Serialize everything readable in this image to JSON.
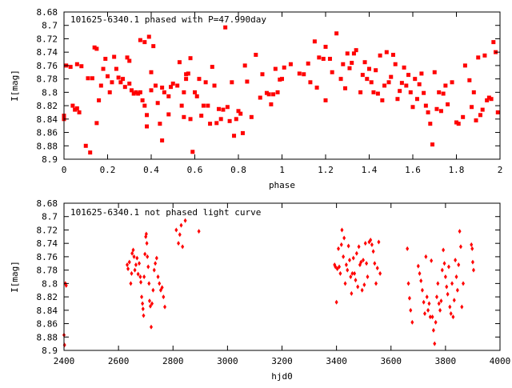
{
  "colors": {
    "points": "#ff0000",
    "axes": "#000000",
    "background": "#ffffff"
  },
  "chart_data": [
    {
      "type": "scatter",
      "title": "101625-6340.1 phased with P=47.990day",
      "xlabel": "phase",
      "ylabel": "I[mag]",
      "xlim": [
        0,
        2
      ],
      "ylim": [
        8.68,
        8.9
      ],
      "y_inverted": true,
      "grid": false,
      "marker": "filled square",
      "x_ticks": [
        "0",
        "0.2",
        "0.4",
        "0.6",
        "0.8",
        "1",
        "1.2",
        "1.4",
        "1.6",
        "1.8",
        "2"
      ],
      "x_tick_values": [
        0,
        0.2,
        0.4,
        0.6,
        0.8,
        1,
        1.2,
        1.4,
        1.6,
        1.8,
        2
      ],
      "y_ticks": [
        "8.68",
        "8.7",
        "8.72",
        "8.74",
        "8.76",
        "8.78",
        "8.8",
        "8.82",
        "8.84",
        "8.86",
        "8.88",
        "8.9"
      ],
      "y_tick_values": [
        8.68,
        8.7,
        8.72,
        8.74,
        8.76,
        8.78,
        8.8,
        8.82,
        8.84,
        8.86,
        8.88,
        8.9
      ],
      "points": [
        [
          0.0,
          8.835
        ],
        [
          0.0,
          8.84
        ],
        [
          0.01,
          8.76
        ],
        [
          0.03,
          8.762
        ],
        [
          0.04,
          8.82
        ],
        [
          0.05,
          8.826
        ],
        [
          0.06,
          8.758
        ],
        [
          0.06,
          8.824
        ],
        [
          0.07,
          8.83
        ],
        [
          0.08,
          8.761
        ],
        [
          0.1,
          8.88
        ],
        [
          0.11,
          8.779
        ],
        [
          0.12,
          8.89
        ],
        [
          0.13,
          8.779
        ],
        [
          0.14,
          8.733
        ],
        [
          0.15,
          8.735
        ],
        [
          0.15,
          8.846
        ],
        [
          0.16,
          8.812
        ],
        [
          0.17,
          8.79
        ],
        [
          0.18,
          8.765
        ],
        [
          0.19,
          8.75
        ],
        [
          0.2,
          8.776
        ],
        [
          0.21,
          8.8
        ],
        [
          0.22,
          8.785
        ],
        [
          0.23,
          8.747
        ],
        [
          0.24,
          8.765
        ],
        [
          0.25,
          8.778
        ],
        [
          0.26,
          8.785
        ],
        [
          0.27,
          8.78
        ],
        [
          0.28,
          8.792
        ],
        [
          0.29,
          8.748
        ],
        [
          0.3,
          8.753
        ],
        [
          0.3,
          8.787
        ],
        [
          0.31,
          8.797
        ],
        [
          0.32,
          8.802
        ],
        [
          0.33,
          8.8
        ],
        [
          0.34,
          8.802
        ],
        [
          0.35,
          8.722
        ],
        [
          0.35,
          8.8
        ],
        [
          0.36,
          8.812
        ],
        [
          0.37,
          8.725
        ],
        [
          0.37,
          8.82
        ],
        [
          0.38,
          8.834
        ],
        [
          0.38,
          8.851
        ],
        [
          0.39,
          8.717
        ],
        [
          0.4,
          8.77
        ],
        [
          0.4,
          8.797
        ],
        [
          0.41,
          8.731
        ],
        [
          0.42,
          8.79
        ],
        [
          0.43,
          8.816
        ],
        [
          0.44,
          8.847
        ],
        [
          0.45,
          8.872
        ],
        [
          0.45,
          8.793
        ],
        [
          0.46,
          8.8
        ],
        [
          0.48,
          8.833
        ],
        [
          0.48,
          8.806
        ],
        [
          0.49,
          8.792
        ],
        [
          0.5,
          8.787
        ],
        [
          0.52,
          8.79
        ],
        [
          0.53,
          8.755
        ],
        [
          0.54,
          8.82
        ],
        [
          0.55,
          8.837
        ],
        [
          0.55,
          8.8
        ],
        [
          0.56,
          8.78
        ],
        [
          0.56,
          8.773
        ],
        [
          0.57,
          8.772
        ],
        [
          0.58,
          8.749
        ],
        [
          0.58,
          8.84
        ],
        [
          0.59,
          8.889
        ],
        [
          0.6,
          8.8
        ],
        [
          0.61,
          8.806
        ],
        [
          0.62,
          8.78
        ],
        [
          0.63,
          8.835
        ],
        [
          0.64,
          8.82
        ],
        [
          0.65,
          8.785
        ],
        [
          0.66,
          8.82
        ],
        [
          0.67,
          8.847
        ],
        [
          0.68,
          8.762
        ],
        [
          0.69,
          8.79
        ],
        [
          0.7,
          8.846
        ],
        [
          0.71,
          8.825
        ],
        [
          0.72,
          8.84
        ],
        [
          0.73,
          8.826
        ],
        [
          0.74,
          8.703
        ],
        [
          0.75,
          8.822
        ],
        [
          0.76,
          8.843
        ],
        [
          0.77,
          8.785
        ],
        [
          0.78,
          8.865
        ],
        [
          0.79,
          8.84
        ],
        [
          0.8,
          8.828
        ],
        [
          0.81,
          8.832
        ],
        [
          0.82,
          8.861
        ],
        [
          0.83,
          8.76
        ],
        [
          0.84,
          8.784
        ],
        [
          0.86,
          8.837
        ],
        [
          0.88,
          8.744
        ],
        [
          0.9,
          8.808
        ],
        [
          0.91,
          8.773
        ],
        [
          0.93,
          8.801
        ],
        [
          0.94,
          8.803
        ],
        [
          0.95,
          8.818
        ],
        [
          0.96,
          8.803
        ],
        [
          0.97,
          8.765
        ],
        [
          0.98,
          8.8
        ],
        [
          0.99,
          8.781
        ],
        [
          1.0,
          8.78
        ],
        [
          1.01,
          8.763
        ],
        [
          1.04,
          8.758
        ],
        [
          1.08,
          8.772
        ],
        [
          1.1,
          8.773
        ],
        [
          1.12,
          8.757
        ],
        [
          1.13,
          8.785
        ],
        [
          1.15,
          8.724
        ],
        [
          1.16,
          8.793
        ],
        [
          1.17,
          8.748
        ],
        [
          1.19,
          8.75
        ],
        [
          1.2,
          8.732
        ],
        [
          1.2,
          8.812
        ],
        [
          1.22,
          8.75
        ],
        [
          1.23,
          8.77
        ],
        [
          1.25,
          8.712
        ],
        [
          1.27,
          8.78
        ],
        [
          1.28,
          8.758
        ],
        [
          1.29,
          8.794
        ],
        [
          1.3,
          8.742
        ],
        [
          1.31,
          8.764
        ],
        [
          1.32,
          8.756
        ],
        [
          1.33,
          8.742
        ],
        [
          1.34,
          8.737
        ],
        [
          1.36,
          8.8
        ],
        [
          1.37,
          8.774
        ],
        [
          1.38,
          8.755
        ],
        [
          1.39,
          8.78
        ],
        [
          1.4,
          8.765
        ],
        [
          1.41,
          8.785
        ],
        [
          1.42,
          8.8
        ],
        [
          1.43,
          8.767
        ],
        [
          1.44,
          8.802
        ],
        [
          1.45,
          8.745
        ],
        [
          1.46,
          8.812
        ],
        [
          1.47,
          8.79
        ],
        [
          1.48,
          8.74
        ],
        [
          1.49,
          8.785
        ],
        [
          1.5,
          8.777
        ],
        [
          1.51,
          8.744
        ],
        [
          1.52,
          8.758
        ],
        [
          1.53,
          8.81
        ],
        [
          1.54,
          8.798
        ],
        [
          1.55,
          8.786
        ],
        [
          1.56,
          8.763
        ],
        [
          1.57,
          8.79
        ],
        [
          1.58,
          8.774
        ],
        [
          1.59,
          8.8
        ],
        [
          1.6,
          8.822
        ],
        [
          1.61,
          8.78
        ],
        [
          1.62,
          8.81
        ],
        [
          1.63,
          8.788
        ],
        [
          1.64,
          8.772
        ],
        [
          1.65,
          8.801
        ],
        [
          1.66,
          8.82
        ],
        [
          1.67,
          8.83
        ],
        [
          1.68,
          8.847
        ],
        [
          1.69,
          8.878
        ],
        [
          1.7,
          8.77
        ],
        [
          1.71,
          8.825
        ],
        [
          1.72,
          8.8
        ],
        [
          1.73,
          8.828
        ],
        [
          1.74,
          8.802
        ],
        [
          1.75,
          8.79
        ],
        [
          1.76,
          8.818
        ],
        [
          1.78,
          8.785
        ],
        [
          1.8,
          8.845
        ],
        [
          1.81,
          8.847
        ],
        [
          1.83,
          8.837
        ],
        [
          1.84,
          8.76
        ],
        [
          1.86,
          8.782
        ],
        [
          1.87,
          8.822
        ],
        [
          1.88,
          8.8
        ],
        [
          1.89,
          8.842
        ],
        [
          1.9,
          8.748
        ],
        [
          1.91,
          8.834
        ],
        [
          1.92,
          8.826
        ],
        [
          1.93,
          8.745
        ],
        [
          1.94,
          8.812
        ],
        [
          1.95,
          8.808
        ],
        [
          1.96,
          8.81
        ],
        [
          1.97,
          8.725
        ],
        [
          1.98,
          8.74
        ],
        [
          1.99,
          8.83
        ]
      ]
    },
    {
      "type": "scatter",
      "title": "101625-6340.1 not phased light curve",
      "xlabel": "hjd0",
      "ylabel": "I[mag]",
      "xlim": [
        2400,
        4000
      ],
      "ylim": [
        8.68,
        8.9
      ],
      "y_inverted": true,
      "grid": false,
      "marker": "filled diamond",
      "x_ticks": [
        "2400",
        "2600",
        "2800",
        "3000",
        "3200",
        "3400",
        "3600",
        "3800",
        "4000"
      ],
      "x_tick_values": [
        2400,
        2600,
        2800,
        3000,
        3200,
        3400,
        3600,
        3800,
        4000
      ],
      "y_ticks": [
        "8.68",
        "8.7",
        "8.72",
        "8.74",
        "8.76",
        "8.78",
        "8.8",
        "8.82",
        "8.84",
        "8.86",
        "8.88",
        "8.9"
      ],
      "y_tick_values": [
        8.68,
        8.7,
        8.72,
        8.74,
        8.76,
        8.78,
        8.8,
        8.82,
        8.84,
        8.86,
        8.88,
        8.9
      ],
      "points": [
        [
          2400,
          8.877
        ],
        [
          2402,
          8.892
        ],
        [
          2405,
          8.8
        ],
        [
          2408,
          8.803
        ],
        [
          2632,
          8.772
        ],
        [
          2635,
          8.778
        ],
        [
          2640,
          8.768
        ],
        [
          2645,
          8.8
        ],
        [
          2648,
          8.785
        ],
        [
          2650,
          8.755
        ],
        [
          2654,
          8.75
        ],
        [
          2657,
          8.76
        ],
        [
          2660,
          8.78
        ],
        [
          2664,
          8.772
        ],
        [
          2668,
          8.762
        ],
        [
          2672,
          8.786
        ],
        [
          2676,
          8.77
        ],
        [
          2680,
          8.79
        ],
        [
          2682,
          8.798
        ],
        [
          2685,
          8.82
        ],
        [
          2688,
          8.83
        ],
        [
          2690,
          8.838
        ],
        [
          2692,
          8.848
        ],
        [
          2694,
          8.79
        ],
        [
          2697,
          8.756
        ],
        [
          2700,
          8.73
        ],
        [
          2702,
          8.726
        ],
        [
          2704,
          8.74
        ],
        [
          2706,
          8.76
        ],
        [
          2709,
          8.775
        ],
        [
          2712,
          8.8
        ],
        [
          2714,
          8.826
        ],
        [
          2717,
          8.834
        ],
        [
          2720,
          8.865
        ],
        [
          2723,
          8.83
        ],
        [
          2727,
          8.81
        ],
        [
          2731,
          8.78
        ],
        [
          2735,
          8.77
        ],
        [
          2740,
          8.762
        ],
        [
          2745,
          8.79
        ],
        [
          2750,
          8.8
        ],
        [
          2755,
          8.81
        ],
        [
          2760,
          8.806
        ],
        [
          2765,
          8.82
        ],
        [
          2770,
          8.835
        ],
        [
          2812,
          8.72
        ],
        [
          2820,
          8.74
        ],
        [
          2825,
          8.727
        ],
        [
          2830,
          8.713
        ],
        [
          2835,
          8.745
        ],
        [
          2845,
          8.706
        ],
        [
          2895,
          8.722
        ],
        [
          3393,
          8.772
        ],
        [
          3396,
          8.775
        ],
        [
          3400,
          8.828
        ],
        [
          3403,
          8.778
        ],
        [
          3407,
          8.748
        ],
        [
          3410,
          8.775
        ],
        [
          3414,
          8.785
        ],
        [
          3418,
          8.742
        ],
        [
          3420,
          8.72
        ],
        [
          3425,
          8.76
        ],
        [
          3428,
          8.732
        ],
        [
          3432,
          8.8
        ],
        [
          3436,
          8.772
        ],
        [
          3440,
          8.78
        ],
        [
          3444,
          8.744
        ],
        [
          3448,
          8.765
        ],
        [
          3452,
          8.79
        ],
        [
          3455,
          8.815
        ],
        [
          3458,
          8.785
        ],
        [
          3462,
          8.762
        ],
        [
          3466,
          8.785
        ],
        [
          3470,
          8.795
        ],
        [
          3474,
          8.755
        ],
        [
          3478,
          8.805
        ],
        [
          3482,
          8.745
        ],
        [
          3486,
          8.772
        ],
        [
          3490,
          8.768
        ],
        [
          3494,
          8.81
        ],
        [
          3498,
          8.765
        ],
        [
          3502,
          8.802
        ],
        [
          3506,
          8.74
        ],
        [
          3510,
          8.77
        ],
        [
          3514,
          8.79
        ],
        [
          3520,
          8.738
        ],
        [
          3525,
          8.735
        ],
        [
          3530,
          8.742
        ],
        [
          3535,
          8.752
        ],
        [
          3540,
          8.77
        ],
        [
          3545,
          8.8
        ],
        [
          3550,
          8.777
        ],
        [
          3555,
          8.738
        ],
        [
          3560,
          8.785
        ],
        [
          3660,
          8.748
        ],
        [
          3664,
          8.8
        ],
        [
          3668,
          8.822
        ],
        [
          3672,
          8.84
        ],
        [
          3678,
          8.858
        ],
        [
          3700,
          8.774
        ],
        [
          3705,
          8.785
        ],
        [
          3710,
          8.796
        ],
        [
          3715,
          8.81
        ],
        [
          3720,
          8.828
        ],
        [
          3724,
          8.845
        ],
        [
          3728,
          8.76
        ],
        [
          3732,
          8.82
        ],
        [
          3736,
          8.84
        ],
        [
          3740,
          8.83
        ],
        [
          3744,
          8.85
        ],
        [
          3748,
          8.766
        ],
        [
          3752,
          8.85
        ],
        [
          3756,
          8.87
        ],
        [
          3760,
          8.89
        ],
        [
          3764,
          8.858
        ],
        [
          3768,
          8.82
        ],
        [
          3772,
          8.8
        ],
        [
          3776,
          8.83
        ],
        [
          3780,
          8.84
        ],
        [
          3784,
          8.826
        ],
        [
          3788,
          8.78
        ],
        [
          3792,
          8.75
        ],
        [
          3796,
          8.77
        ],
        [
          3800,
          8.79
        ],
        [
          3804,
          8.805
        ],
        [
          3808,
          8.816
        ],
        [
          3812,
          8.775
        ],
        [
          3816,
          8.835
        ],
        [
          3820,
          8.845
        ],
        [
          3824,
          8.8
        ],
        [
          3828,
          8.85
        ],
        [
          3832,
          8.825
        ],
        [
          3836,
          8.765
        ],
        [
          3840,
          8.79
        ],
        [
          3844,
          8.81
        ],
        [
          3848,
          8.772
        ],
        [
          3852,
          8.722
        ],
        [
          3856,
          8.745
        ],
        [
          3860,
          8.835
        ],
        [
          3865,
          8.8
        ],
        [
          3895,
          8.742
        ],
        [
          3898,
          8.748
        ],
        [
          3900,
          8.768
        ],
        [
          3903,
          8.78
        ]
      ]
    }
  ]
}
